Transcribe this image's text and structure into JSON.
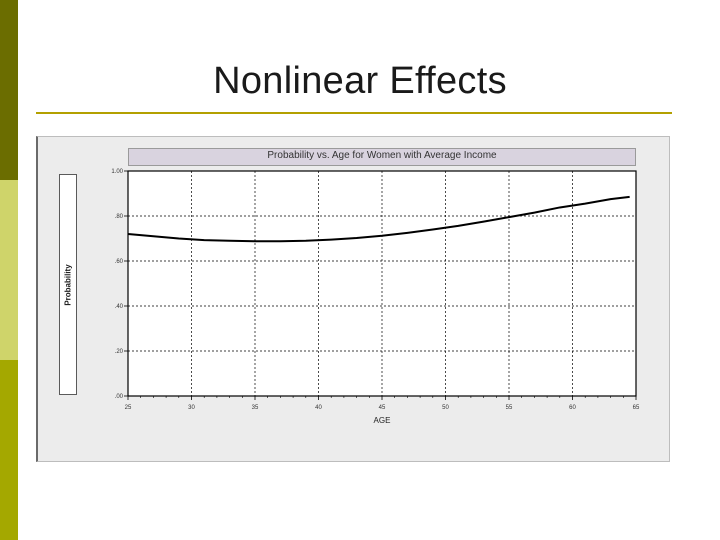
{
  "slide": {
    "title": "Nonlinear Effects"
  },
  "colors": {
    "stripe_dark": "#6b6d00",
    "stripe_light": "#cfd46a",
    "stripe_olive": "#a4a800",
    "rule": "#b3a000"
  },
  "chart_data": {
    "type": "line",
    "title": "Probability vs. Age for Women with Average Income",
    "xlabel": "AGE",
    "ylabel": "Probability",
    "xlim": [
      25,
      65
    ],
    "ylim": [
      0,
      1
    ],
    "x_ticks": [
      25,
      30,
      35,
      40,
      45,
      50,
      55,
      60,
      65
    ],
    "x_tick_labels": [
      "25",
      "30",
      "35",
      "40",
      "45",
      "50",
      "55",
      "60",
      "65"
    ],
    "y_ticks": [
      0,
      0.2,
      0.4,
      0.6,
      0.8,
      1.0
    ],
    "y_tick_labels": [
      ".00",
      ".20",
      ".40",
      ".60",
      ".80",
      "1.00"
    ],
    "grid": true,
    "series": [
      {
        "x": [
          25,
          27,
          29,
          31,
          33,
          35,
          37,
          39,
          41,
          43,
          45,
          47,
          49,
          51,
          53,
          55,
          57,
          59,
          61,
          63,
          64.5
        ],
        "values": [
          0.72,
          0.71,
          0.7,
          0.693,
          0.69,
          0.688,
          0.688,
          0.69,
          0.695,
          0.702,
          0.712,
          0.725,
          0.74,
          0.756,
          0.775,
          0.795,
          0.815,
          0.838,
          0.855,
          0.875,
          0.885
        ]
      }
    ]
  }
}
